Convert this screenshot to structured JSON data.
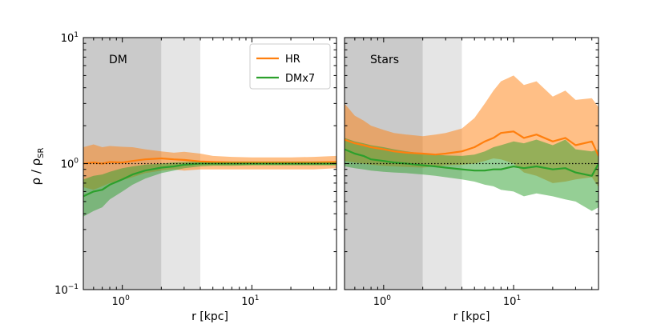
{
  "figure": {
    "y_axis_label": "ρ / ρ",
    "y_axis_label_sub": "SR",
    "reference_line_value": 1.0
  },
  "colors": {
    "HR": "#ff7f0e",
    "DMx7": "#2ca02c",
    "dark_shade": "#9e9e9e",
    "light_shade": "#cfcfcf"
  },
  "chart_data": [
    {
      "type": "line",
      "panel": "DM",
      "title": "DM",
      "xlabel": "r [kpc]",
      "xscale": "log",
      "yscale": "log",
      "xlim": [
        0.5,
        45
      ],
      "ylim": [
        0.1,
        10
      ],
      "xticks": [
        {
          "value": 1,
          "base": "10",
          "exp": "0"
        },
        {
          "value": 10,
          "base": "10",
          "exp": "1"
        }
      ],
      "yticks": [
        {
          "value": 0.1,
          "base": "10",
          "exp": "−1"
        },
        {
          "value": 1,
          "base": "10",
          "exp": "0"
        },
        {
          "value": 10,
          "base": "10",
          "exp": "1"
        }
      ],
      "shaded_regions": [
        {
          "from": 0.5,
          "to": 2,
          "shade": "dark"
        },
        {
          "from": 2,
          "to": 4,
          "shade": "light"
        }
      ],
      "legend": {
        "location": "upper right",
        "entries": [
          "HR",
          "DMx7"
        ]
      },
      "x": [
        0.5,
        0.6,
        0.7,
        0.8,
        1.0,
        1.2,
        1.5,
        2.0,
        2.5,
        3.0,
        4.0,
        5.0,
        7.0,
        10,
        15,
        20,
        30,
        45
      ],
      "series": [
        {
          "name": "HR",
          "values": [
            1.0,
            1.02,
            1.0,
            1.03,
            1.02,
            1.05,
            1.08,
            1.1,
            1.08,
            1.07,
            1.04,
            1.03,
            1.02,
            1.02,
            1.02,
            1.02,
            1.02,
            1.03
          ],
          "lower": [
            0.65,
            0.62,
            0.66,
            0.7,
            0.74,
            0.78,
            0.84,
            0.88,
            0.9,
            0.88,
            0.9,
            0.9,
            0.9,
            0.9,
            0.9,
            0.9,
            0.9,
            0.92
          ],
          "upper": [
            1.35,
            1.42,
            1.35,
            1.38,
            1.36,
            1.35,
            1.3,
            1.25,
            1.22,
            1.24,
            1.2,
            1.15,
            1.13,
            1.12,
            1.12,
            1.12,
            1.13,
            1.15
          ]
        },
        {
          "name": "DMx7",
          "values": [
            0.55,
            0.6,
            0.62,
            0.68,
            0.75,
            0.82,
            0.88,
            0.93,
            0.95,
            0.98,
            1.0,
            1.0,
            1.0,
            1.0,
            1.0,
            1.0,
            1.0,
            1.0
          ],
          "lower": [
            0.38,
            0.42,
            0.45,
            0.52,
            0.6,
            0.68,
            0.76,
            0.84,
            0.88,
            0.92,
            0.95,
            0.96,
            0.96,
            0.97,
            0.97,
            0.97,
            0.97,
            0.97
          ],
          "upper": [
            0.75,
            0.8,
            0.82,
            0.86,
            0.92,
            0.95,
            0.98,
            1.0,
            1.02,
            1.03,
            1.04,
            1.04,
            1.04,
            1.04,
            1.04,
            1.04,
            1.04,
            1.04
          ]
        }
      ]
    },
    {
      "type": "line",
      "panel": "Stars",
      "title": "Stars",
      "xlabel": "r [kpc]",
      "xscale": "log",
      "yscale": "log",
      "xlim": [
        0.5,
        45
      ],
      "ylim": [
        0.1,
        10
      ],
      "xticks": [
        {
          "value": 1,
          "base": "10",
          "exp": "0"
        },
        {
          "value": 10,
          "base": "10",
          "exp": "1"
        }
      ],
      "yticks": [],
      "shaded_regions": [
        {
          "from": 0.5,
          "to": 2,
          "shade": "dark"
        },
        {
          "from": 2,
          "to": 4,
          "shade": "light"
        }
      ],
      "x": [
        0.5,
        0.6,
        0.7,
        0.8,
        1.0,
        1.2,
        1.5,
        2.0,
        2.5,
        3.0,
        4.0,
        5.0,
        6.0,
        7.0,
        8.0,
        10,
        12,
        15,
        20,
        25,
        30,
        40,
        45
      ],
      "series": [
        {
          "name": "HR",
          "values": [
            1.55,
            1.45,
            1.4,
            1.35,
            1.3,
            1.25,
            1.22,
            1.2,
            1.18,
            1.2,
            1.25,
            1.35,
            1.5,
            1.6,
            1.75,
            1.8,
            1.6,
            1.7,
            1.5,
            1.6,
            1.4,
            1.5,
            1.15
          ],
          "lower": [
            1.05,
            1.02,
            1.0,
            0.98,
            0.96,
            0.95,
            0.94,
            0.93,
            0.95,
            0.97,
            0.98,
            1.0,
            1.05,
            1.1,
            1.08,
            1.0,
            0.85,
            0.8,
            0.7,
            0.72,
            0.75,
            0.78,
            0.65
          ],
          "upper": [
            3.0,
            2.4,
            2.2,
            2.0,
            1.85,
            1.75,
            1.7,
            1.65,
            1.7,
            1.75,
            1.9,
            2.3,
            3.0,
            3.8,
            4.5,
            5.0,
            4.2,
            4.5,
            3.4,
            3.8,
            3.2,
            3.3,
            2.8
          ]
        },
        {
          "name": "DMx7",
          "values": [
            1.3,
            1.2,
            1.15,
            1.08,
            1.05,
            1.02,
            1.0,
            0.97,
            0.95,
            0.93,
            0.9,
            0.88,
            0.88,
            0.9,
            0.9,
            0.95,
            0.92,
            0.95,
            0.9,
            0.92,
            0.85,
            0.8,
            1.0
          ],
          "lower": [
            0.95,
            0.92,
            0.9,
            0.88,
            0.86,
            0.85,
            0.84,
            0.82,
            0.8,
            0.78,
            0.75,
            0.72,
            0.68,
            0.66,
            0.62,
            0.6,
            0.55,
            0.58,
            0.55,
            0.52,
            0.5,
            0.42,
            0.45
          ],
          "upper": [
            1.6,
            1.5,
            1.45,
            1.4,
            1.35,
            1.3,
            1.25,
            1.2,
            1.18,
            1.16,
            1.15,
            1.18,
            1.25,
            1.35,
            1.4,
            1.5,
            1.45,
            1.55,
            1.4,
            1.55,
            1.3,
            1.25,
            1.3
          ]
        }
      ]
    }
  ]
}
